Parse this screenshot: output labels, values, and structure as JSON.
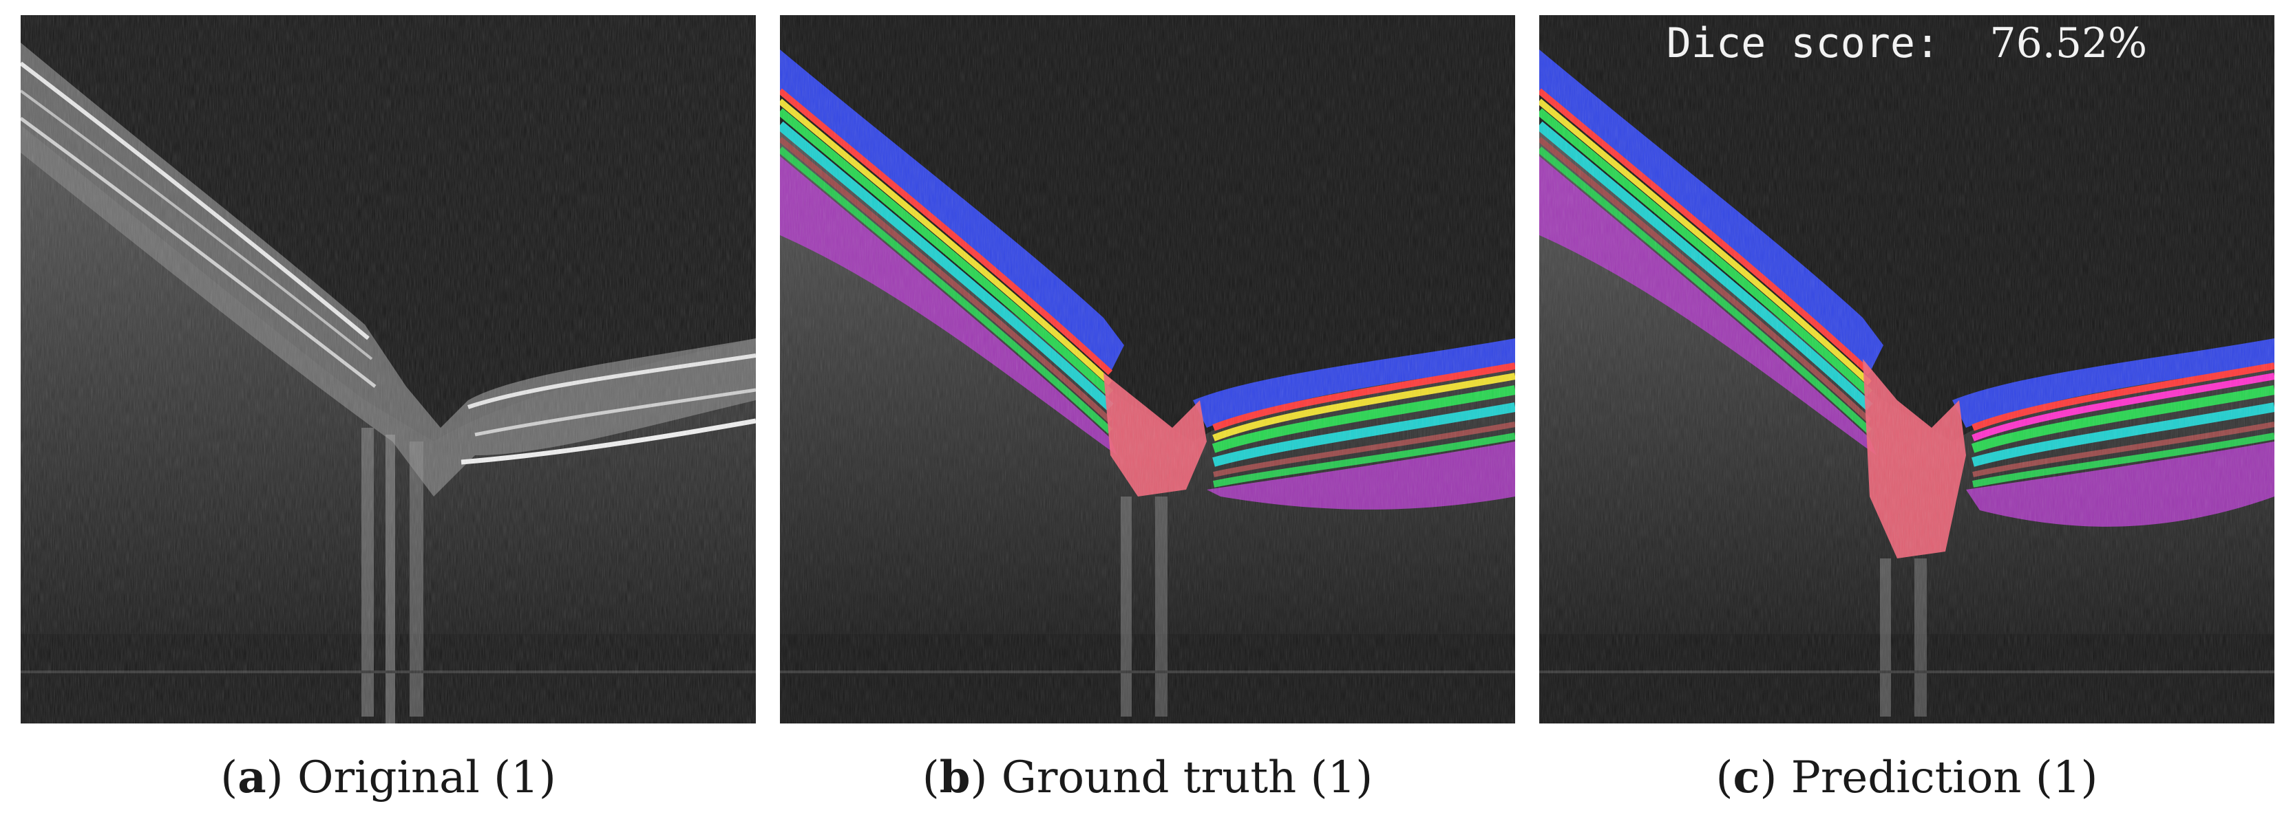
{
  "figure": {
    "panels": [
      {
        "letter": "a",
        "caption": " Original (1)"
      },
      {
        "letter": "b",
        "caption": " Ground truth (1)"
      },
      {
        "letter": "c",
        "caption": " Prediction (1)"
      }
    ],
    "dice": {
      "label": "Dice score:  ",
      "value": "76.52%"
    }
  },
  "colors": {
    "background": "#191919",
    "nerve_fiber_layer": "#3347e6",
    "optic_disc": "#f0667a",
    "layer_bands": [
      "#ff3b3b",
      "#f0e030",
      "#28d650",
      "#ff33cc",
      "#20d0d0",
      "#9a4a4a",
      "#28c850"
    ],
    "choroid": "#b03cc8"
  }
}
